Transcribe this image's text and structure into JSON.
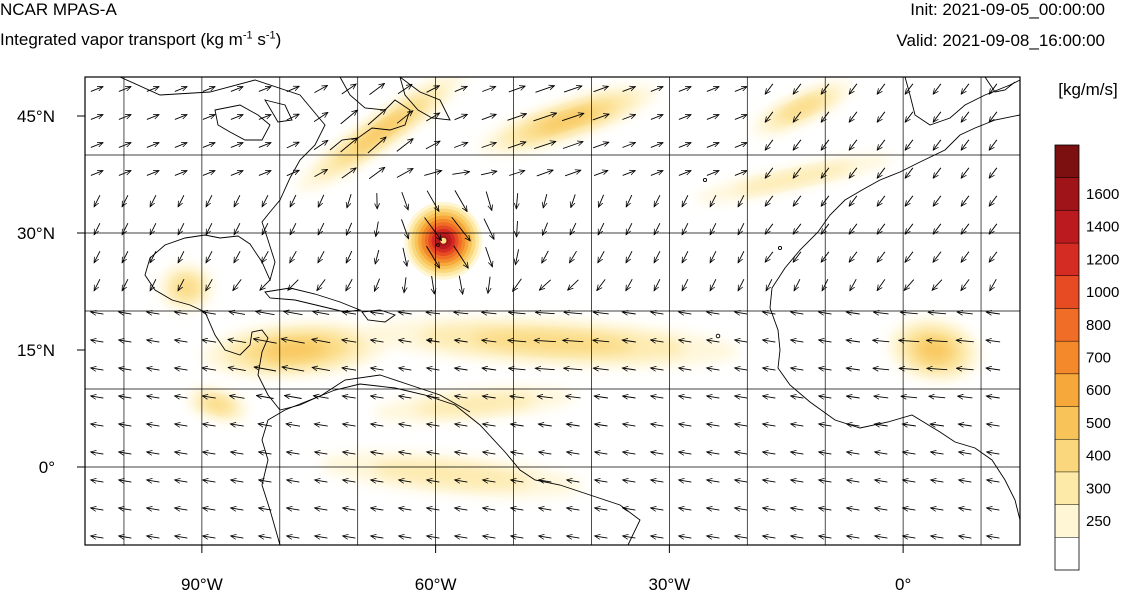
{
  "header": {
    "model": "NCAR MPAS-A",
    "field_prefix": "Integrated vapor transport (kg m",
    "exp1": "-1",
    "field_mid": " s",
    "exp2": "-1",
    "field_suffix": ")",
    "init": "Init: 2021-09-05_00:00:00",
    "valid": "Valid: 2021-09-08_16:00:00"
  },
  "map": {
    "lon_range": [
      -105,
      15
    ],
    "lat_range": [
      -10,
      50
    ],
    "lon_ticks": [
      {
        "value": -90,
        "label": "90°W"
      },
      {
        "value": -60,
        "label": "60°W"
      },
      {
        "value": -30,
        "label": "30°W"
      },
      {
        "value": 0,
        "label": "0°"
      }
    ],
    "lat_ticks": [
      {
        "value": 45,
        "label": "45°N"
      },
      {
        "value": 30,
        "label": "30°N"
      },
      {
        "value": 15,
        "label": "15°N"
      },
      {
        "value": 0,
        "label": "0°"
      }
    ],
    "grid_lon": [
      -100,
      -90,
      -80,
      -70,
      -60,
      -50,
      -40,
      -30,
      -20,
      -10,
      0,
      10
    ],
    "grid_lat": [
      -10,
      0,
      10,
      20,
      30,
      40,
      50
    ]
  },
  "colorbar": {
    "units": "[kg/m/s]",
    "levels": [
      {
        "label": "",
        "color": "#ffffff"
      },
      {
        "label": "250",
        "color": "#fff6d5"
      },
      {
        "label": "300",
        "color": "#fde9a8"
      },
      {
        "label": "400",
        "color": "#fad77c"
      },
      {
        "label": "500",
        "color": "#f8c45a"
      },
      {
        "label": "600",
        "color": "#f6a83a"
      },
      {
        "label": "700",
        "color": "#f3892b"
      },
      {
        "label": "800",
        "color": "#ef6d26"
      },
      {
        "label": "1000",
        "color": "#e64b24"
      },
      {
        "label": "1200",
        "color": "#d42c23"
      },
      {
        "label": "1400",
        "color": "#bb1b1f"
      },
      {
        "label": "1600",
        "color": "#9e1418"
      },
      {
        "label": "",
        "color": "#7c1010"
      }
    ]
  },
  "ivt_features": [
    {
      "type": "band",
      "lon": -67,
      "lat": 43,
      "len_deg": 26,
      "wid_deg": 4.5,
      "angle": -35,
      "level": 4
    },
    {
      "type": "band",
      "lon": -43,
      "lat": 44.5,
      "len_deg": 24,
      "wid_deg": 5,
      "angle": -18,
      "level": 4
    },
    {
      "type": "band",
      "lon": -14,
      "lat": 37,
      "len_deg": 26,
      "wid_deg": 3,
      "angle": -12,
      "level": 2
    },
    {
      "type": "band",
      "lon": -78,
      "lat": 15,
      "len_deg": 24,
      "wid_deg": 7,
      "angle": -4,
      "level": 4
    },
    {
      "type": "band",
      "lon": -45,
      "lat": 16,
      "len_deg": 48,
      "wid_deg": 6,
      "angle": 3,
      "level": 3
    },
    {
      "type": "band",
      "lon": -55,
      "lat": 8,
      "len_deg": 26,
      "wid_deg": 4,
      "angle": -5,
      "level": 2
    },
    {
      "type": "band",
      "lon": -58,
      "lat": -1,
      "len_deg": 34,
      "wid_deg": 5,
      "angle": 5,
      "level": 2
    },
    {
      "type": "band",
      "lon": -13,
      "lat": 46,
      "len_deg": 14,
      "wid_deg": 4,
      "angle": -25,
      "level": 3
    },
    {
      "type": "blob",
      "lon": -92,
      "lat": 23,
      "len_deg": 7,
      "wid_deg": 6,
      "angle": 0,
      "level": 3
    },
    {
      "type": "blob",
      "lon": 4,
      "lat": 15,
      "len_deg": 12,
      "wid_deg": 8,
      "angle": 10,
      "level": 4
    },
    {
      "type": "blob",
      "lon": -88,
      "lat": 8,
      "len_deg": 8,
      "wid_deg": 4,
      "angle": 15,
      "level": 3
    },
    {
      "type": "cyclone",
      "lon": -59,
      "lat": 29,
      "len_deg": 10,
      "wid_deg": 10,
      "angle": 0,
      "level": 11
    }
  ],
  "wind_vectors": {
    "spacing_px": 28,
    "strong": [
      {
        "lon": -68,
        "lat": 43,
        "u": 1,
        "v": 1.2,
        "mag": 3
      },
      {
        "lon": -45,
        "lat": 44,
        "u": 1,
        "v": 0.3,
        "mag": 3
      },
      {
        "lon": -58,
        "lat": 30,
        "u": 1,
        "v": -0.6,
        "mag": 4
      },
      {
        "lon": -80,
        "lat": 15,
        "u": -1,
        "v": 0.2,
        "mag": 3
      },
      {
        "lon": -45,
        "lat": 16,
        "u": -1,
        "v": 0,
        "mag": 2.5
      },
      {
        "lon": 3,
        "lat": 15,
        "u": -1,
        "v": 0,
        "mag": 2.5
      }
    ]
  }
}
